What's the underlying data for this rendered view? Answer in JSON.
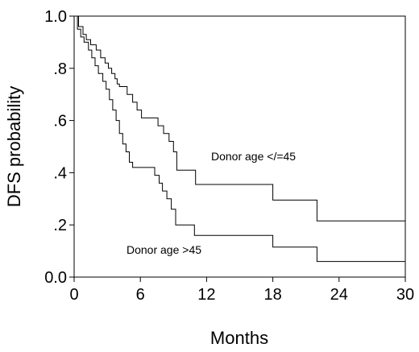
{
  "chart_data": {
    "type": "line",
    "title": "",
    "xlabel": "Months",
    "ylabel": "DFS probability",
    "xlim": [
      0,
      30
    ],
    "ylim": [
      0,
      1
    ],
    "x_ticks": [
      0,
      6,
      12,
      18,
      24,
      30
    ],
    "x_tick_labels": [
      "0",
      "6",
      "12",
      "18",
      "24",
      "30"
    ],
    "y_ticks": [
      0,
      0.2,
      0.4,
      0.6,
      0.8,
      1.0
    ],
    "y_tick_labels": [
      "0.0",
      ".2",
      ".4",
      ".6",
      ".8",
      "1.0"
    ],
    "grid": false,
    "step": true,
    "series": [
      {
        "x": [
          0,
          0.4,
          0.8,
          1.1,
          1.5,
          2.0,
          2.4,
          2.8,
          3.1,
          3.4,
          3.7,
          3.9,
          4.1,
          4.4,
          4.8,
          5.3,
          5.7,
          6.1,
          6.4,
          6.9,
          7.6,
          8.1,
          8.6,
          9.0,
          9.3,
          11.0,
          18.0,
          22.0,
          30.0
        ],
        "y": [
          1.0,
          0.96,
          0.93,
          0.91,
          0.89,
          0.87,
          0.84,
          0.82,
          0.8,
          0.78,
          0.76,
          0.74,
          0.73,
          0.73,
          0.7,
          0.67,
          0.64,
          0.61,
          0.61,
          0.61,
          0.58,
          0.55,
          0.52,
          0.48,
          0.41,
          0.355,
          0.295,
          0.215,
          0.215
        ]
      },
      {
        "x": [
          0,
          0.3,
          0.6,
          0.9,
          1.3,
          1.6,
          1.9,
          2.2,
          2.6,
          2.9,
          3.2,
          3.5,
          3.8,
          4.1,
          4.4,
          4.7,
          5.0,
          5.3,
          5.7,
          6.0,
          7.3,
          7.7,
          8.0,
          8.4,
          8.8,
          9.2,
          10.9,
          18.0,
          22.0,
          30.0
        ],
        "y": [
          1.0,
          0.95,
          0.92,
          0.9,
          0.87,
          0.84,
          0.81,
          0.78,
          0.75,
          0.72,
          0.68,
          0.64,
          0.6,
          0.55,
          0.51,
          0.48,
          0.44,
          0.42,
          0.42,
          0.42,
          0.39,
          0.36,
          0.33,
          0.3,
          0.26,
          0.2,
          0.16,
          0.115,
          0.06,
          0.06
        ]
      }
    ],
    "annotations": [
      {
        "text": "Donor age </=45"
      },
      {
        "text": "Donor age >45"
      }
    ]
  }
}
